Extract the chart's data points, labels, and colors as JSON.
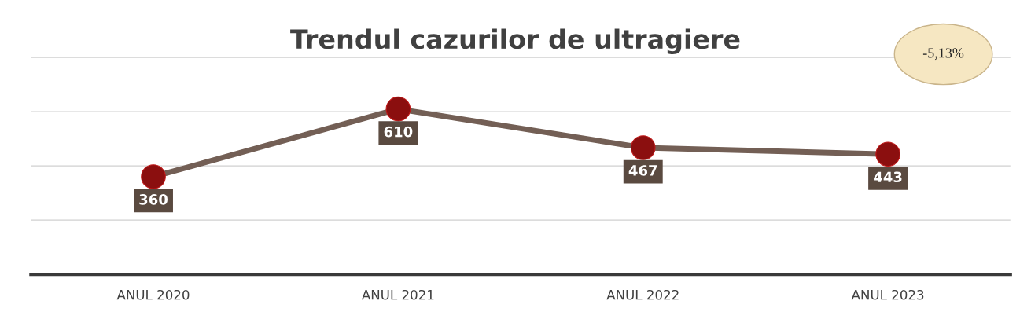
{
  "chart_data": {
    "type": "line",
    "title": "Trendul cazurilor de ultragiere",
    "categories": [
      "ANUL 2020",
      "ANUL 2021",
      "ANUL 2022",
      "ANUL 2023"
    ],
    "series": [
      {
        "color": "#735f55",
        "values": [
          360,
          610,
          467,
          443
        ]
      }
    ],
    "marker": "circle",
    "line_style": "solid",
    "data_labels": true,
    "grid": "y",
    "tick_labels": "x",
    "ylim": [
      0,
      800
    ],
    "yticks": [
      {
        "value": 0,
        "label": null
      },
      {
        "value": 200,
        "label": null
      },
      {
        "value": 400,
        "label": null
      },
      {
        "value": 600,
        "label": null
      },
      {
        "value": 800,
        "label": null
      }
    ],
    "annotations": [
      "-5,13%"
    ]
  }
}
